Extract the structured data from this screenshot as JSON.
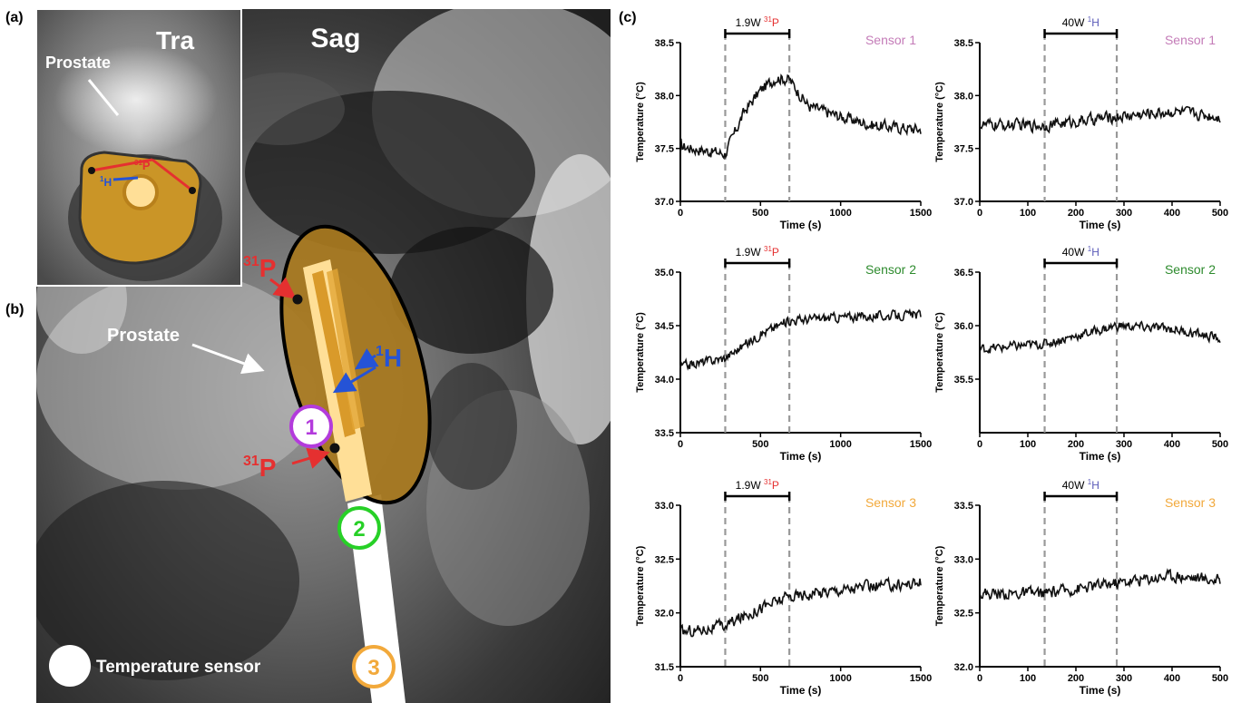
{
  "panel_a": {
    "letter": "(a)",
    "title": "Tra",
    "organ_label": "Prostate",
    "p_label_sup": "31",
    "p_label": "P",
    "h_label_sup": "1",
    "h_label": "H"
  },
  "panel_b": {
    "letter": "(b)",
    "title": "Sag",
    "organ_label": "Prostate",
    "p_sup": "31",
    "p_label": "P",
    "h_sup": "1",
    "h_label": "H",
    "sensor_numbers": [
      "1",
      "2",
      "3"
    ],
    "legend_label": "Temperature sensor"
  },
  "panel_c": {
    "letter": "(c)",
    "colors": {
      "sensor1": "#c47cb8",
      "sensor2": "#2e8b2e",
      "sensor3": "#f2a93b",
      "p_highlight": "#e53030",
      "h_highlight": "#5a5ab8",
      "trace": "#111111",
      "dashed": "#999999"
    }
  },
  "chart_data": [
    {
      "type": "line",
      "id": "s1p",
      "sensor": "Sensor 1",
      "bracket": {
        "prefix": "1.9W ",
        "sup": "31",
        "nucleus": "P"
      },
      "xlabel": "Time (s)",
      "ylabel": "Temperature (°C)",
      "xlim": [
        0,
        1500
      ],
      "ylim": [
        37.0,
        38.5
      ],
      "xticks": [
        "0",
        "500",
        "1000",
        "1500"
      ],
      "yticks": [
        "37.0",
        "37.5",
        "38.0",
        "38.5"
      ],
      "on_off": [
        280,
        680
      ],
      "key_points": {
        "x": [
          0,
          280,
          400,
          500,
          600,
          680,
          800,
          1000,
          1200,
          1500
        ],
        "y": [
          37.52,
          37.45,
          37.85,
          38.05,
          38.17,
          38.15,
          37.9,
          37.8,
          37.72,
          37.68
        ]
      },
      "noise": 0.05
    },
    {
      "type": "line",
      "id": "s1h",
      "sensor": "Sensor 1",
      "bracket": {
        "prefix": "40W ",
        "sup": "1",
        "nucleus": "H"
      },
      "xlabel": "Time (s)",
      "ylabel": "Temperature (°C)",
      "xlim": [
        0,
        500
      ],
      "ylim": [
        37.0,
        38.5
      ],
      "xticks": [
        "0",
        "100",
        "200",
        "300",
        "400",
        "500"
      ],
      "yticks": [
        "37.0",
        "37.5",
        "38.0",
        "38.5"
      ],
      "on_off": [
        135,
        285
      ],
      "key_points": {
        "x": [
          0,
          135,
          285,
          400,
          500
        ],
        "y": [
          37.72,
          37.72,
          37.8,
          37.85,
          37.8
        ]
      },
      "noise": 0.05
    },
    {
      "type": "line",
      "id": "s2p",
      "sensor": "Sensor 2",
      "bracket": {
        "prefix": "1.9W ",
        "sup": "31",
        "nucleus": "P"
      },
      "xlabel": "Time (s)",
      "ylabel": "Temperature (°C)",
      "xlim": [
        0,
        1500
      ],
      "ylim": [
        33.5,
        35.0
      ],
      "xticks": [
        "0",
        "500",
        "1000",
        "1500"
      ],
      "yticks": [
        "33.5",
        "34.0",
        "34.5",
        "35.0"
      ],
      "on_off": [
        280,
        680
      ],
      "key_points": {
        "x": [
          0,
          280,
          500,
          680,
          1000,
          1500
        ],
        "y": [
          34.12,
          34.2,
          34.42,
          34.55,
          34.58,
          34.6
        ]
      },
      "noise": 0.04
    },
    {
      "type": "line",
      "id": "s2h",
      "sensor": "Sensor 2",
      "bracket": {
        "prefix": "40W ",
        "sup": "1",
        "nucleus": "H"
      },
      "xlabel": "Time (s)",
      "ylabel": "Temperature (°C)",
      "xlim": [
        0,
        500
      ],
      "ylim": [
        35.0,
        36.5
      ],
      "xticks": [
        "0",
        "100",
        "200",
        "300",
        "400",
        "500"
      ],
      "yticks": [
        "35.5",
        "36.0",
        "36.5"
      ],
      "on_off": [
        135,
        285
      ],
      "key_points": {
        "x": [
          0,
          135,
          285,
          400,
          500
        ],
        "y": [
          35.78,
          35.83,
          36.0,
          35.97,
          35.88
        ]
      },
      "noise": 0.04
    },
    {
      "type": "line",
      "id": "s3p",
      "sensor": "Sensor 3",
      "bracket": {
        "prefix": "1.9W ",
        "sup": "31",
        "nucleus": "P"
      },
      "xlabel": "Time (s)",
      "ylabel": "Temperature (°C)",
      "xlim": [
        0,
        1500
      ],
      "ylim": [
        31.5,
        33.0
      ],
      "xticks": [
        "0",
        "500",
        "1000",
        "1500"
      ],
      "yticks": [
        "31.5",
        "32.0",
        "32.5",
        "33.0"
      ],
      "on_off": [
        280,
        680
      ],
      "key_points": {
        "x": [
          0,
          280,
          500,
          680,
          1000,
          1500
        ],
        "y": [
          31.82,
          31.88,
          32.05,
          32.15,
          32.22,
          32.28
        ]
      },
      "noise": 0.05
    },
    {
      "type": "line",
      "id": "s3h",
      "sensor": "Sensor 3",
      "bracket": {
        "prefix": "40W ",
        "sup": "1",
        "nucleus": "H"
      },
      "xlabel": "Time (s)",
      "ylabel": "Temperature (°C)",
      "xlim": [
        0,
        500
      ],
      "ylim": [
        32.0,
        33.5
      ],
      "xticks": [
        "0",
        "100",
        "200",
        "300",
        "400",
        "500"
      ],
      "yticks": [
        "32.0",
        "32.5",
        "33.0",
        "33.5"
      ],
      "on_off": [
        135,
        285
      ],
      "key_points": {
        "x": [
          0,
          135,
          285,
          400,
          500
        ],
        "y": [
          32.68,
          32.68,
          32.78,
          32.85,
          32.8
        ]
      },
      "noise": 0.05
    }
  ]
}
